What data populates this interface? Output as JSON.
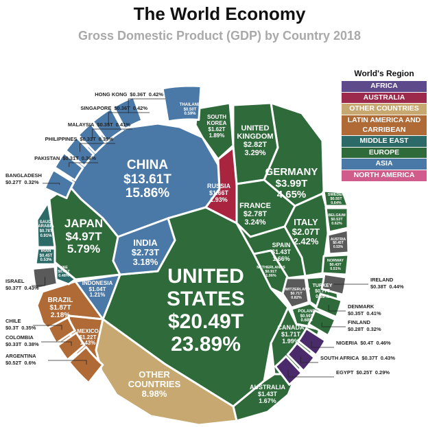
{
  "chart_data": {
    "type": "voronoi",
    "title": "The World Economy",
    "subtitle": "Gross Domestic Product (GDP) by Country 2018",
    "legend_title": "World's Region",
    "legend": [
      {
        "name": "AFRICA",
        "color": "#5d4a8b"
      },
      {
        "name": "AUSTRALIA",
        "color": "#9c2a4d"
      },
      {
        "name": "OTHER COUNTRIES",
        "color": "#c7a870"
      },
      {
        "name": "LATIN AMERICA AND CARRIBEAN",
        "color": "#b06a36"
      },
      {
        "name": "MIDDLE EAST",
        "color": "#2c6a67"
      },
      {
        "name": "EUROPE",
        "color": "#2f6b3a"
      },
      {
        "name": "ASIA",
        "color": "#4a79a8"
      },
      {
        "name": "NORTH AMERICA",
        "color": "#cf5c8b"
      }
    ],
    "categories": [
      "CHINA",
      "UNITED STATES",
      "JAPAN",
      "GERMANY",
      "UNITED KINGDOM",
      "FRANCE",
      "INDIA",
      "ITALY",
      "BRAZIL",
      "CANADA",
      "RUSSIA",
      "SOUTH KOREA",
      "SPAIN",
      "AUSTRALIA",
      "MEXICO",
      "INDONESIA",
      "NETHERLANDS",
      "SAUDI ARABIA",
      "TURKEY",
      "SWITZERLAND",
      "OTHER COUNTRIES",
      "POLAND",
      "SWEDEN",
      "ARGENTINA",
      "BELGIUM",
      "THAILAND",
      "IRAN",
      "AUSTRIA",
      "NORWAY",
      "UAE",
      "NIGERIA",
      "IRELAND",
      "ISRAEL",
      "SOUTH AFRICA",
      "HONG KONG",
      "SINGAPORE",
      "MALAYSIA",
      "DENMARK",
      "COLOMBIA",
      "PHILIPPINES",
      "PAKISTAN",
      "CHILE",
      "FINLAND",
      "BANGLADESH",
      "EGYPT"
    ],
    "values": [
      13.61,
      20.49,
      4.97,
      3.99,
      2.82,
      2.78,
      2.73,
      2.07,
      1.87,
      1.71,
      1.66,
      1.62,
      1.43,
      1.43,
      1.22,
      1.04,
      0.91,
      0.78,
      0.77,
      0.71,
      null,
      0.59,
      0.55,
      0.52,
      0.53,
      0.5,
      0.45,
      0.45,
      0.43,
      0.41,
      0.4,
      0.38,
      0.37,
      0.37,
      0.36,
      0.36,
      0.35,
      0.35,
      0.33,
      0.33,
      0.31,
      0.3,
      0.28,
      0.27,
      0.25
    ],
    "value_labels": [
      "$13.61T",
      "$20.49T",
      "$4.97T",
      "$3.99T",
      "$2.82T",
      "$2.78T",
      "$2.73T",
      "$2.07T",
      "$1.87T",
      "$1.71T",
      "$1.66T",
      "$1.62T",
      "$1.43T",
      "$1.43T",
      "$1.22T",
      "$1.04T",
      "$0.91T",
      "$0.78T",
      "$0.77T",
      "$0.71T",
      null,
      "$0.59T",
      "$0.55T",
      "$0.52T",
      "$0.53T",
      "$0.50T",
      "$0.45T",
      "$0.45T",
      "$0.43T",
      "$0.41T",
      "$0.4T",
      "$0.38T",
      "$0.37T",
      "$0.37T",
      "$0.36T",
      "$0.36T",
      "$0.35T",
      "$0.35T",
      "$0.33T",
      "$0.33T",
      "$0.31T",
      "$0.3T",
      "$0.28T",
      "$0.27T",
      "$0.25T"
    ],
    "shares": [
      15.86,
      23.89,
      5.79,
      4.65,
      3.29,
      3.24,
      3.18,
      2.42,
      2.18,
      1.99,
      1.93,
      1.89,
      1.66,
      1.67,
      1.43,
      1.21,
      1.06,
      0.91,
      0.89,
      0.82,
      8.98,
      0.68,
      0.64,
      0.6,
      0.62,
      0.59,
      0.53,
      0.53,
      0.51,
      0.48,
      0.46,
      0.44,
      0.43,
      0.43,
      0.42,
      0.42,
      0.41,
      0.41,
      0.38,
      0.39,
      0.36,
      0.35,
      0.32,
      0.32,
      0.29
    ],
    "share_labels": [
      "15.86%",
      "23.89%",
      "5.79%",
      "4.65%",
      "3.29%",
      "3.24%",
      "3.18%",
      "2.42%",
      "2.18%",
      "1.99%",
      "1.93%",
      "1.89%",
      "1.66%",
      "1.67%",
      "1.43%",
      "1.21%",
      "1.06%",
      "0.91%",
      "0.89%",
      "0.82%",
      "8.98%",
      "0.68%",
      "0.64%",
      "0.6%",
      "0.62%",
      "0.59%",
      "0.53%",
      "0.53%",
      "0.51%",
      "0.48%",
      "0.46%",
      "0.44%",
      "0.43%",
      "0.43%",
      "0.42%",
      "0.42%",
      "0.41%",
      "0.41%",
      "0.38%",
      "0.39%",
      "0.36%",
      "0.35%",
      "0.32%",
      "0.32%",
      "0.29%"
    ],
    "colors": [
      "#4a79a8",
      "#2f6b3a",
      "#2f6b3a",
      "#2f6b3a",
      "#2f6b3a",
      "#2f6b3a",
      "#4a79a8",
      "#2f6b3a",
      "#b06a36",
      "#2f6b3a",
      "#a8243f",
      "#2f6b3a",
      "#2f6b3a",
      "#2f6b3a",
      "#b06a36",
      "#4a79a8",
      "#2f6b3a",
      "#2c6a67",
      "#2f6b3a",
      "#5a5a5a",
      "#c7a870",
      "#2f6b3a",
      "#2f6b3a",
      "#b06a36",
      "#2f6b3a",
      "#4a79a8",
      "#2c6a67",
      "#5a5a5a",
      "#2f6b3a",
      "#2c6a67",
      "#4b2a6b",
      "#5a5a5a",
      "#5a5a5a",
      "#4b2a6b",
      "#4a79a8",
      "#4a79a8",
      "#4a79a8",
      "#2f6b3a",
      "#b06a36",
      "#4a79a8",
      "#4a79a8",
      "#b06a36",
      "#2f6b3a",
      "#4a79a8",
      "#4b2a6b"
    ]
  }
}
